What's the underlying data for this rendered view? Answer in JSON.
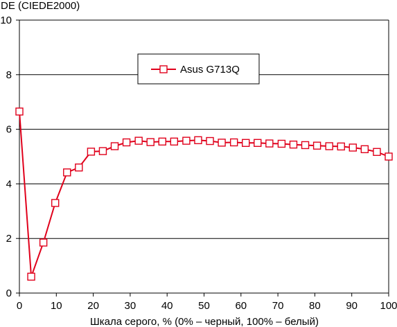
{
  "chart_data": {
    "type": "line",
    "ylabel": "DE (CIEDE2000)",
    "xlabel": "Шкала серого, % (0% – черный, 100% – белый)",
    "xlim": [
      0,
      100
    ],
    "ylim": [
      0,
      10
    ],
    "xticks": [
      0,
      10,
      20,
      30,
      40,
      50,
      60,
      70,
      80,
      90,
      100
    ],
    "yticks": [
      0,
      2,
      4,
      6,
      8,
      10
    ],
    "grid": "horizontal",
    "legend_position": "top-center",
    "colors": {
      "series": "#e0001b",
      "marker_fill": "#ffffff",
      "grid": "#000000"
    },
    "series": [
      {
        "name": "Asus G713Q",
        "x": [
          0,
          3.2,
          6.5,
          9.7,
          12.9,
          16.1,
          19.4,
          22.6,
          25.8,
          29.0,
          32.3,
          35.5,
          38.7,
          41.9,
          45.2,
          48.4,
          51.6,
          54.8,
          58.1,
          61.3,
          64.5,
          67.7,
          71.0,
          74.2,
          77.4,
          80.6,
          83.9,
          87.1,
          90.3,
          93.5,
          96.8,
          100
        ],
        "values": [
          6.65,
          0.6,
          1.85,
          3.3,
          4.42,
          4.6,
          5.18,
          5.2,
          5.38,
          5.52,
          5.58,
          5.53,
          5.55,
          5.55,
          5.58,
          5.6,
          5.57,
          5.51,
          5.52,
          5.5,
          5.5,
          5.48,
          5.47,
          5.44,
          5.42,
          5.4,
          5.38,
          5.37,
          5.33,
          5.27,
          5.17,
          5.0
        ]
      }
    ]
  }
}
